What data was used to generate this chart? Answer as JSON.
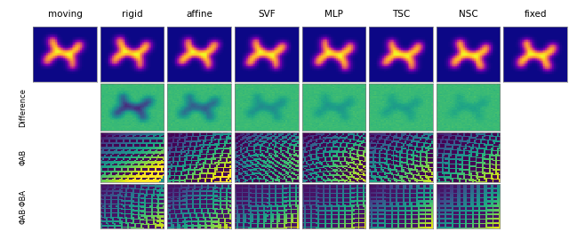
{
  "col_labels": [
    "moving",
    "rigid",
    "affine",
    "SVF",
    "MLP",
    "TSC",
    "NSC",
    "fixed"
  ],
  "row_labels": [
    "",
    "Difference",
    "ΦAB",
    "ΦAB·ΦBA"
  ],
  "background": "#ffffff",
  "dark_bg": "#2d0a3f",
  "teal_bg": "#00b8b8",
  "figsize": [
    6.4,
    2.61
  ],
  "dpi": 100,
  "col_label_fontsize": 7.5,
  "row_label_fontsize": 6,
  "n_rows": 4,
  "n_cols": 8,
  "row_has_data": [
    [
      true,
      true,
      true,
      true,
      true,
      true,
      true,
      true
    ],
    [
      false,
      true,
      true,
      true,
      true,
      true,
      true,
      false
    ],
    [
      false,
      true,
      true,
      true,
      true,
      true,
      true,
      false
    ],
    [
      false,
      true,
      true,
      true,
      true,
      true,
      true,
      false
    ]
  ]
}
